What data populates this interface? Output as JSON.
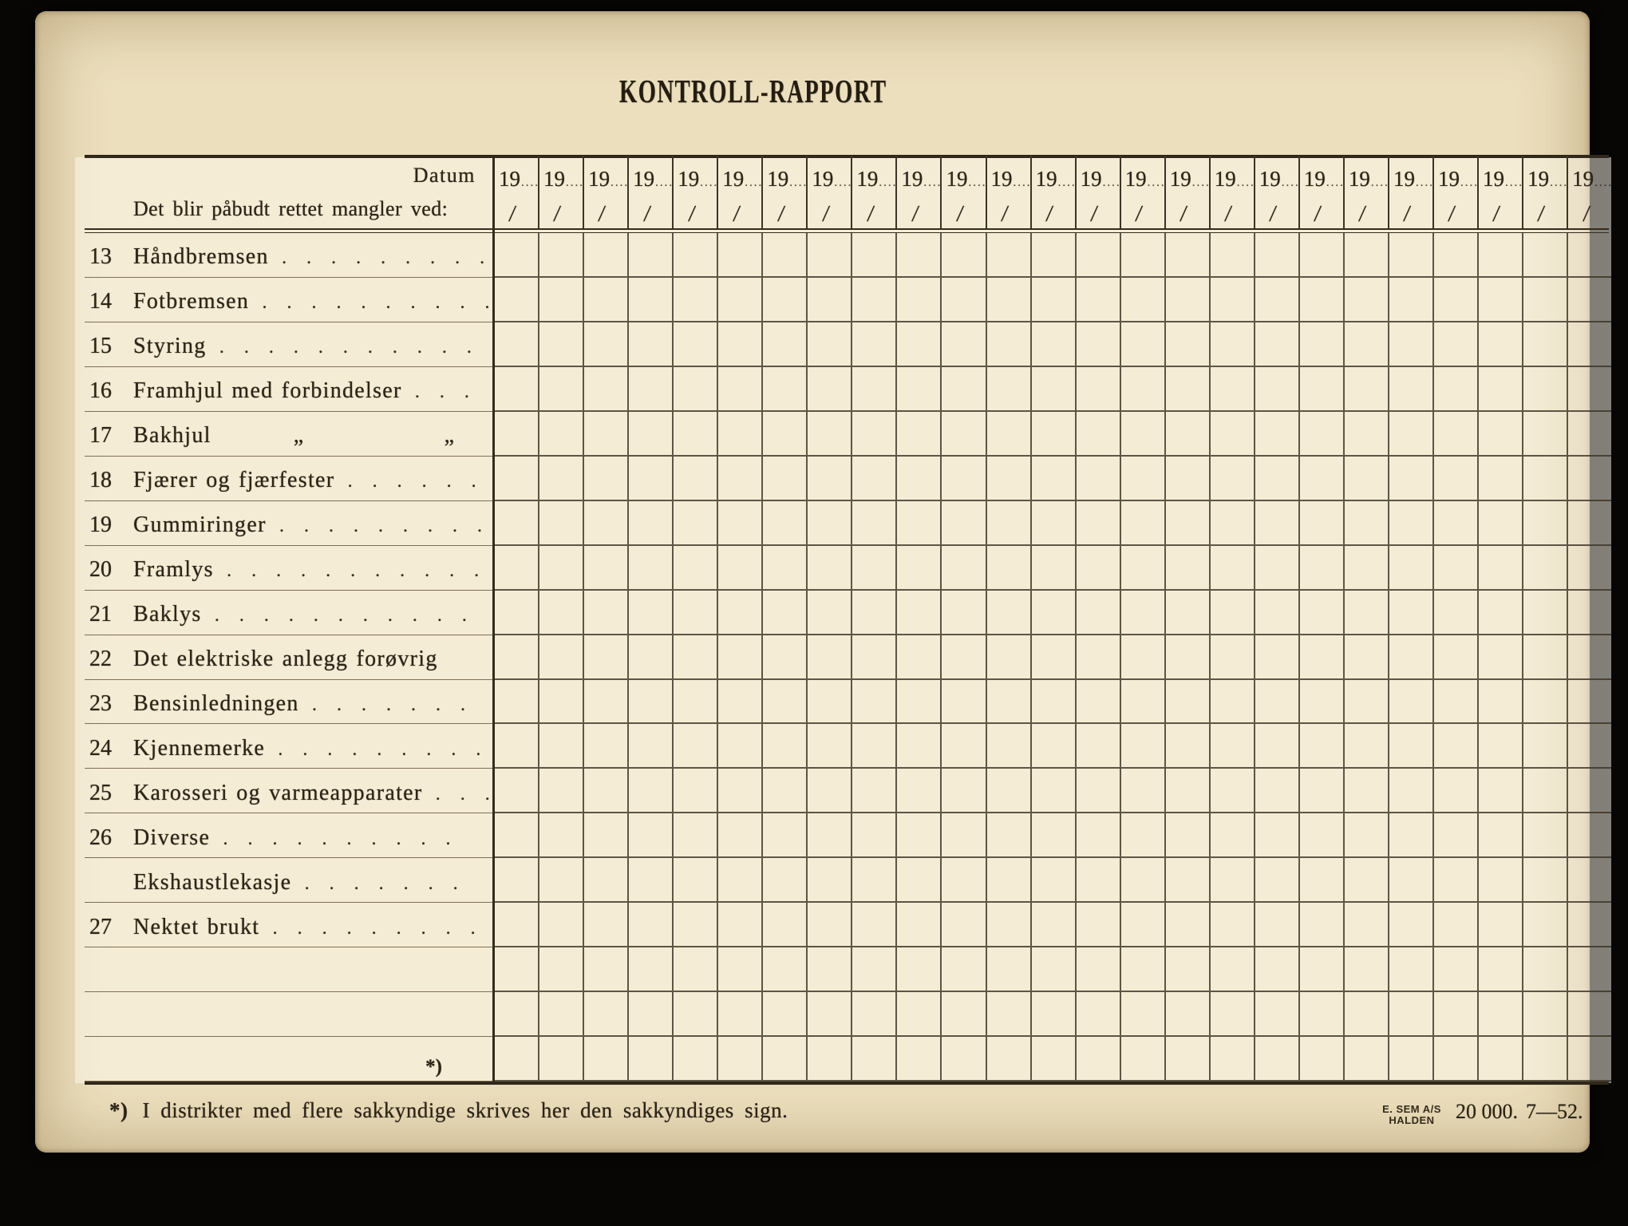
{
  "title": "KONTROLL-RAPPORT",
  "header": {
    "datum_label": "Datum",
    "instruction": "Det blir påbudt rettet mangler ved:",
    "year_prefix": "19",
    "year_dots": "....",
    "date_placeholder_slash": "/",
    "date_column_count": 25
  },
  "rows": [
    {
      "num": "13",
      "label": "Håndbremsen",
      "leader": ". . . . . . . . ."
    },
    {
      "num": "14",
      "label": "Fotbremsen",
      "leader": ". . . . . . . . . ."
    },
    {
      "num": "15",
      "label": "Styring",
      "leader": ". . . . . . . . . . ."
    },
    {
      "num": "16",
      "label": "Framhjul med forbindelser",
      "leader": ". . ."
    },
    {
      "num": "17",
      "label": "Bakhjul          „                 „      ",
      "leader": ". . ."
    },
    {
      "num": "18",
      "label": "Fjærer og fjærfester",
      "leader": ". . . . . . ."
    },
    {
      "num": "19",
      "label": "Gummiringer",
      "leader": ". . . . . . . . . ."
    },
    {
      "num": "20",
      "label": "Framlys",
      "leader": ". . . . . . . . . . ."
    },
    {
      "num": "21",
      "label": "Baklys",
      "leader": ". . . . . . . . . . ."
    },
    {
      "num": "22",
      "label": "Det elektriske anlegg forøvrig",
      "leader": ""
    },
    {
      "num": "23",
      "label": "Bensinledningen",
      "leader": ". . . . . . ."
    },
    {
      "num": "24",
      "label": "Kjennemerke",
      "leader": ". . . . . . . . ."
    },
    {
      "num": "25",
      "label": "Karosseri og varmeapparater",
      "leader": ". . ."
    },
    {
      "num": "26",
      "label": "Diverse",
      "leader": ". . . . . . . . . ."
    },
    {
      "num": "",
      "label": "Ekshaustlekasje",
      "leader": ". . . . . . ."
    },
    {
      "num": "27",
      "label": "Nektet brukt",
      "leader": ". . . . . . . . . ."
    },
    {
      "num": "",
      "label": "",
      "leader": ""
    },
    {
      "num": "",
      "label": "",
      "leader": ""
    },
    {
      "num": "",
      "label": "",
      "leader": "",
      "star": "*)"
    }
  ],
  "footnote": {
    "marker": "*)",
    "text": "I distrikter med flere sakkyndige skrives her den sakkyndiges sign."
  },
  "printer": {
    "company_line1": "E. SEM A/S",
    "company_line2": "HALDEN",
    "print_run": "20 000.",
    "date_code": "7—52."
  },
  "colors": {
    "paper_base": "#ecdfbd",
    "paper_edge": "#d8bd8c",
    "cell_fill": "#f9f5e4",
    "ink": "#2c2416",
    "grid_line": "#3c3426",
    "surround": "#070605"
  }
}
